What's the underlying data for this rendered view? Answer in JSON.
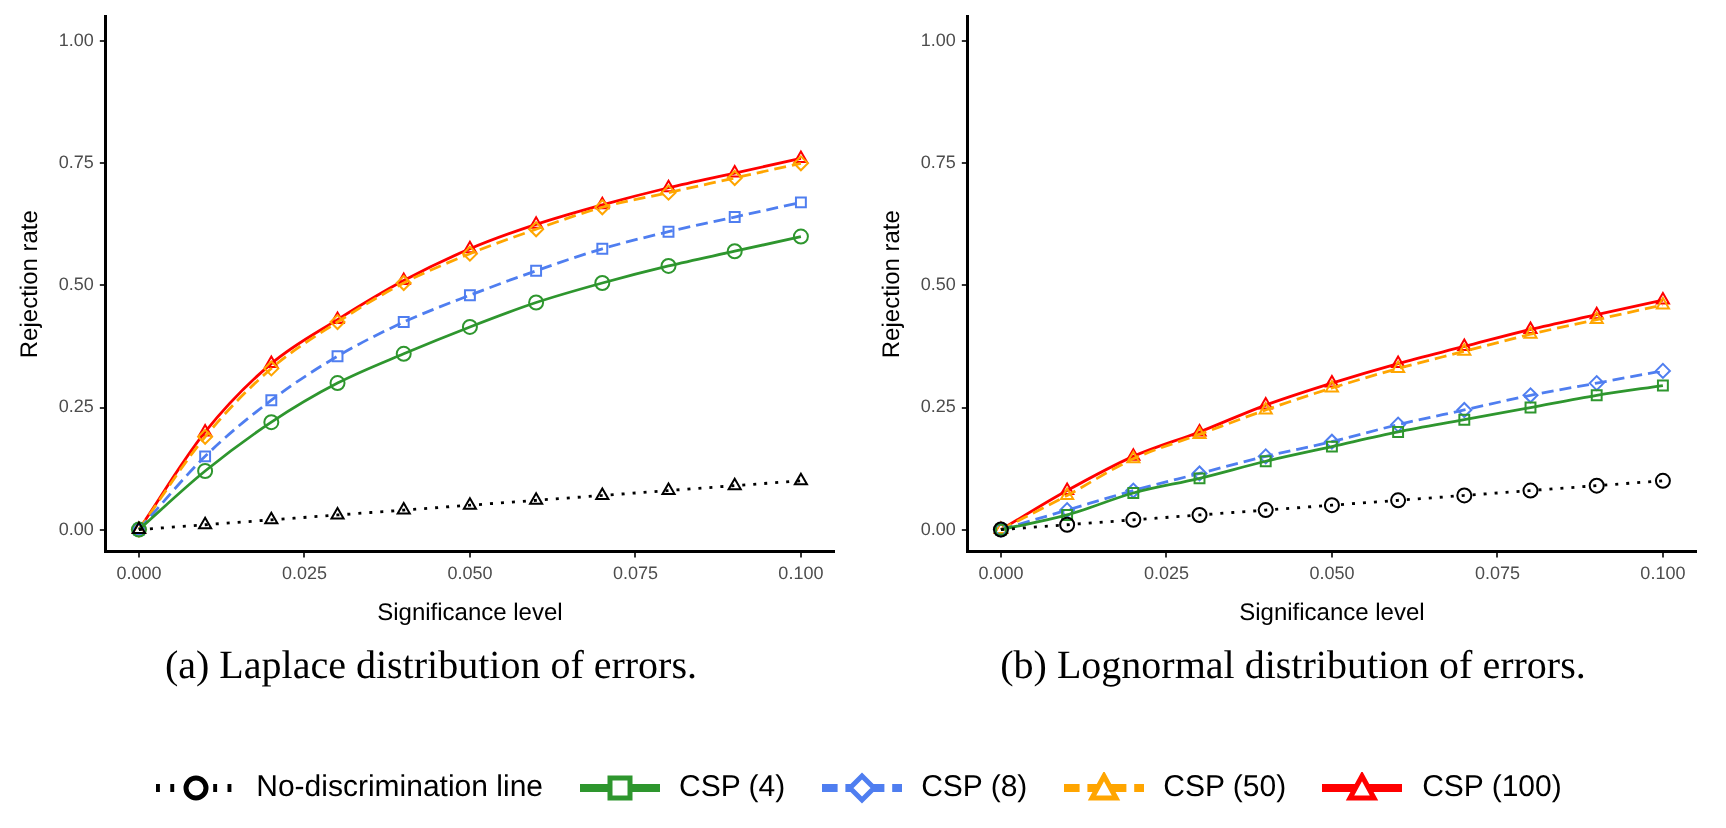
{
  "chart_data": [
    {
      "type": "line",
      "xlabel": "Significance level",
      "ylabel": "Rejection rate",
      "annotations": [
        "(a) Laplace distribution of errors."
      ],
      "legend": "bottom",
      "x": [
        0,
        0.01,
        0.02,
        0.03,
        0.04,
        0.05,
        0.06,
        0.07,
        0.08,
        0.09,
        0.1
      ],
      "xlim": [
        -0.005,
        0.105
      ],
      "xticks": [
        {
          "value": 0,
          "label": "0.000"
        },
        {
          "value": 0.025,
          "label": "0.025"
        },
        {
          "value": 0.05,
          "label": "0.050"
        },
        {
          "value": 0.075,
          "label": "0.075"
        },
        {
          "value": 0.1,
          "label": "0.100"
        }
      ],
      "ylim": [
        -0.045,
        1.05
      ],
      "yticks": [
        {
          "value": 0,
          "label": "0.00"
        },
        {
          "value": 0.25,
          "label": "0.25"
        },
        {
          "value": 0.5,
          "label": "0.50"
        },
        {
          "value": 0.75,
          "label": "0.75"
        },
        {
          "value": 1,
          "label": "1.00"
        }
      ],
      "grid": false,
      "series": [
        {
          "name": "No-discrimination line",
          "color": "#000000",
          "marker": "triangle",
          "line_style": "dotted",
          "values": [
            0,
            0.01,
            0.02,
            0.03,
            0.04,
            0.05,
            0.06,
            0.07,
            0.08,
            0.09,
            0.1
          ]
        },
        {
          "name": "CSP (4)",
          "color": "#2e962e",
          "marker": "circle",
          "line_style": "solid",
          "values": [
            0,
            0.12,
            0.22,
            0.3,
            0.36,
            0.415,
            0.465,
            0.505,
            0.54,
            0.57,
            0.6
          ]
        },
        {
          "name": "CSP (8)",
          "color": "#4f7ef0",
          "marker": "square",
          "line_style": "dashed",
          "values": [
            0,
            0.15,
            0.265,
            0.355,
            0.425,
            0.48,
            0.53,
            0.575,
            0.61,
            0.64,
            0.67
          ]
        },
        {
          "name": "CSP (50)",
          "color": "#ffa500",
          "marker": "diamond",
          "line_style": "dashed",
          "values": [
            0,
            0.19,
            0.33,
            0.425,
            0.505,
            0.565,
            0.615,
            0.66,
            0.69,
            0.72,
            0.75
          ]
        },
        {
          "name": "CSP (100)",
          "color": "#ff0000",
          "marker": "triangle",
          "line_style": "solid",
          "values": [
            0,
            0.2,
            0.34,
            0.43,
            0.51,
            0.575,
            0.625,
            0.665,
            0.7,
            0.73,
            0.76
          ]
        }
      ]
    },
    {
      "type": "line",
      "xlabel": "Significance level",
      "ylabel": "Rejection rate",
      "annotations": [
        "(b) Lognormal distribution of errors."
      ],
      "x": [
        0,
        0.01,
        0.02,
        0.03,
        0.04,
        0.05,
        0.06,
        0.07,
        0.08,
        0.09,
        0.1
      ],
      "xlim": [
        -0.005,
        0.105
      ],
      "xticks": [
        {
          "value": 0,
          "label": "0.000"
        },
        {
          "value": 0.025,
          "label": "0.025"
        },
        {
          "value": 0.05,
          "label": "0.050"
        },
        {
          "value": 0.075,
          "label": "0.075"
        },
        {
          "value": 0.1,
          "label": "0.100"
        }
      ],
      "ylim": [
        -0.045,
        1.05
      ],
      "yticks": [
        {
          "value": 0,
          "label": "0.00"
        },
        {
          "value": 0.25,
          "label": "0.25"
        },
        {
          "value": 0.5,
          "label": "0.50"
        },
        {
          "value": 0.75,
          "label": "0.75"
        },
        {
          "value": 1,
          "label": "1.00"
        }
      ],
      "grid": false,
      "series": [
        {
          "color": "#000000",
          "marker": "circle",
          "line_style": "dotted",
          "values": [
            0,
            0.01,
            0.02,
            0.03,
            0.04,
            0.05,
            0.06,
            0.07,
            0.08,
            0.09,
            0.1
          ]
        },
        {
          "color": "#2e962e",
          "marker": "square",
          "line_style": "solid",
          "values": [
            0,
            0.03,
            0.075,
            0.105,
            0.14,
            0.17,
            0.2,
            0.225,
            0.25,
            0.275,
            0.295
          ]
        },
        {
          "color": "#4f7ef0",
          "marker": "diamond",
          "line_style": "dashed",
          "values": [
            0,
            0.04,
            0.08,
            0.115,
            0.15,
            0.18,
            0.215,
            0.245,
            0.275,
            0.3,
            0.325
          ]
        },
        {
          "color": "#ffa500",
          "marker": "triangle",
          "line_style": "dashed",
          "values": [
            0,
            0.07,
            0.145,
            0.195,
            0.245,
            0.29,
            0.33,
            0.365,
            0.4,
            0.43,
            0.46
          ]
        },
        {
          "color": "#ff0000",
          "marker": "triangle",
          "line_style": "solid",
          "values": [
            0,
            0.08,
            0.15,
            0.2,
            0.255,
            0.3,
            0.34,
            0.375,
            0.41,
            0.44,
            0.47
          ]
        }
      ]
    }
  ]
}
